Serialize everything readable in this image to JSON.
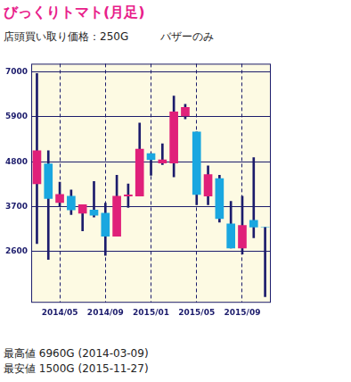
{
  "chart_data": {
    "type": "candlestick",
    "title": "びっくりトマト(月足)",
    "subtitle": [
      "店頭買い取り価格：250G",
      "バザーのみ"
    ],
    "annotations": [
      "最高値 6960G (2014-03-09)",
      "最安値 1500G (2015-11-27)"
    ],
    "categories": [
      null,
      null,
      "2014/05",
      null,
      null,
      null,
      "2014/09",
      null,
      null,
      null,
      "2015/01",
      null,
      null,
      null,
      "2015/05",
      null,
      null,
      null,
      "2015/09",
      null,
      null
    ],
    "open": [
      4260,
      4750,
      3800,
      3960,
      3540,
      3620,
      3540,
      2980,
      3960,
      3960,
      5000,
      4770,
      4770,
      5920,
      5530,
      3960,
      4390,
      3280,
      2690,
      3370,
      3200
    ],
    "high": [
      6960,
      5070,
      4300,
      4110,
      3750,
      4320,
      3790,
      4470,
      4260,
      5750,
      5000,
      5240,
      6410,
      6210,
      5530,
      4700,
      4470,
      3830,
      3960,
      4900,
      3200
    ],
    "low": [
      2800,
      2410,
      3700,
      3510,
      3110,
      3450,
      2510,
      2980,
      3680,
      3960,
      4470,
      4730,
      4430,
      5850,
      3750,
      3750,
      3320,
      2690,
      2540,
      2940,
      1500
    ],
    "close": [
      5070,
      3900,
      4000,
      3620,
      3750,
      3490,
      2980,
      3960,
      3990,
      5110,
      4850,
      4850,
      6020,
      6130,
      4000,
      4490,
      3410,
      2690,
      3240,
      3200,
      3200
    ],
    "colors": [
      "#e0207a",
      "#1aa7e0",
      "#e0207a",
      "#1aa7e0",
      "#e0207a",
      "#1aa7e0",
      "#1aa7e0",
      "#e0207a",
      "#e0207a",
      "#e0207a",
      "#1aa7e0",
      "#e0207a",
      "#e0207a",
      "#e0207a",
      "#1aa7e0",
      "#e0207a",
      "#1aa7e0",
      "#1aa7e0",
      "#e0207a",
      "#1aa7e0",
      "#1aa7e0"
    ],
    "ylim": [
      1350,
      7200
    ],
    "yticks": [
      2600,
      3700,
      4800,
      5900,
      7000
    ],
    "grid": true
  }
}
